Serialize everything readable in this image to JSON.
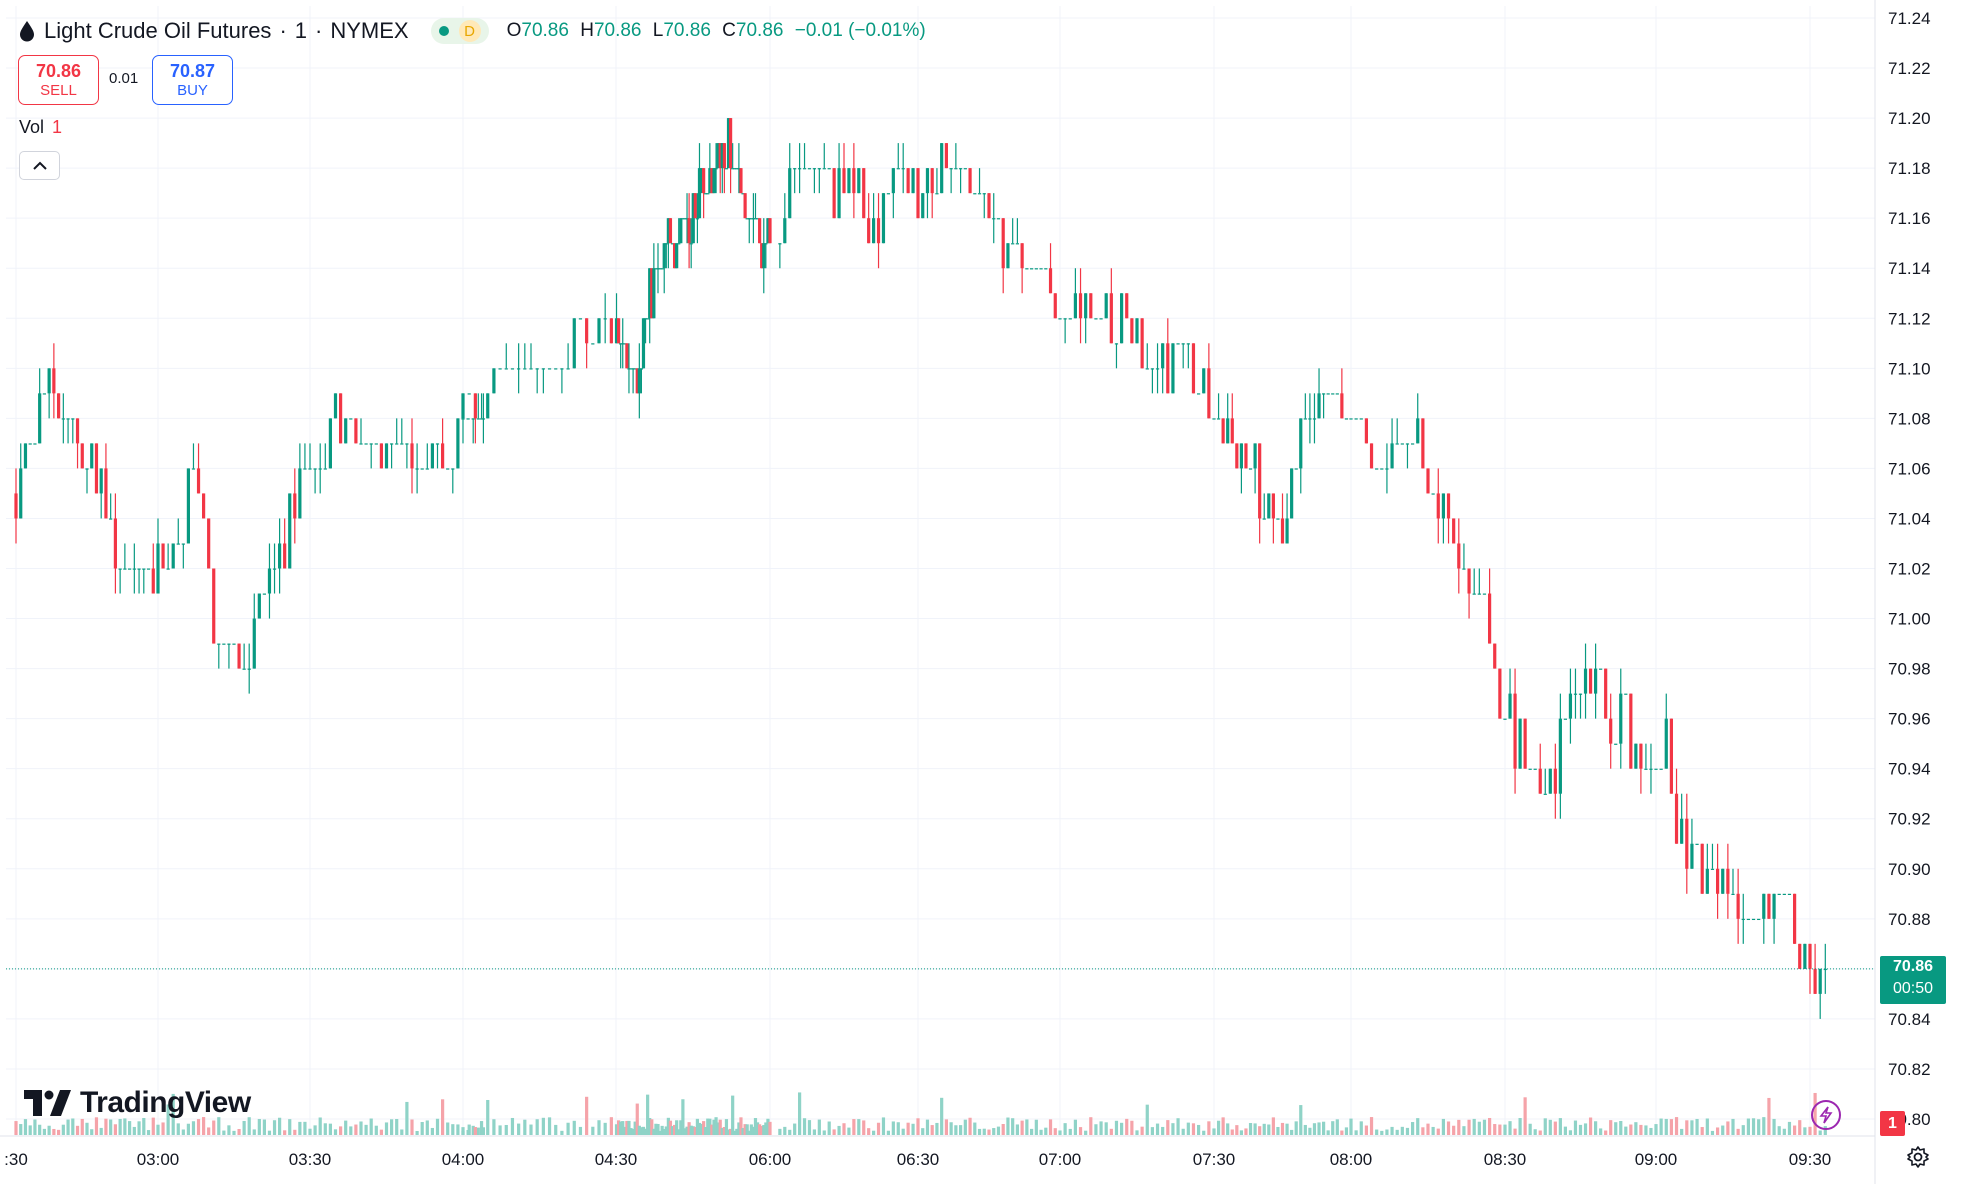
{
  "header": {
    "symbol": "Light Crude Oil Futures",
    "interval": "1",
    "exchange": "NYMEX",
    "title_sep": " · ",
    "interval_sep": " · ",
    "d_badge": "D",
    "ohlc": {
      "o_label": "O",
      "o": "70.86",
      "h_label": "H",
      "h": "70.86",
      "l_label": "L",
      "l": "70.86",
      "c_label": "C",
      "c": "70.86",
      "change": "−0.01 (−0.01%)"
    }
  },
  "trade": {
    "sell_price": "70.86",
    "sell_label": "SELL",
    "spread": "0.01",
    "buy_price": "70.87",
    "buy_label": "BUY"
  },
  "volume": {
    "label": "Vol",
    "value": "1"
  },
  "logo": {
    "text": "TradingView"
  },
  "price_badge": {
    "price": "70.86",
    "countdown": "00:50"
  },
  "alert_flag": "1",
  "icons": {
    "symbol": "drop-icon",
    "collapse": "chevron-up-icon",
    "bolt": "lightning-icon",
    "settings": "gear-icon"
  },
  "colors": {
    "up": "#089981",
    "down": "#f23645",
    "up_volume": "#8fd3c7",
    "down_volume": "#f5a3a9"
  },
  "chart_data": {
    "type": "candlestick",
    "y_ticks": [
      "71.24",
      "71.22",
      "71.20",
      "71.18",
      "71.16",
      "71.14",
      "71.12",
      "71.10",
      "71.08",
      "71.06",
      "71.04",
      "71.02",
      "71.00",
      "70.98",
      "70.96",
      "70.94",
      "70.92",
      "70.90",
      "70.88",
      "70.86",
      "70.84",
      "70.82",
      "70.80"
    ],
    "ylim": [
      70.79,
      71.245
    ],
    "x_ticks": [
      ":30",
      "03:00",
      "03:30",
      "04:00",
      "04:30",
      "06:00",
      "06:30",
      "07:00",
      "07:30",
      "08:00",
      "08:30",
      "09:00",
      "09:30"
    ],
    "last_price": 70.86,
    "grid": true,
    "anchors": [
      {
        "t": "02:30",
        "p": 71.05
      },
      {
        "t": "02:37",
        "p": 71.09
      },
      {
        "t": "02:45",
        "p": 71.06
      },
      {
        "t": "02:55",
        "p": 71.01
      },
      {
        "t": "03:07",
        "p": 71.05
      },
      {
        "t": "03:12",
        "p": 70.99
      },
      {
        "t": "03:17",
        "p": 70.98
      },
      {
        "t": "03:28",
        "p": 71.05
      },
      {
        "t": "03:35",
        "p": 71.08
      },
      {
        "t": "03:45",
        "p": 71.06
      },
      {
        "t": "03:53",
        "p": 71.05
      },
      {
        "t": "03:58",
        "p": 71.08
      },
      {
        "t": "04:10",
        "p": 71.06
      },
      {
        "t": "04:16",
        "p": 71.1
      },
      {
        "t": "04:22",
        "p": 71.08
      },
      {
        "t": "04:30",
        "p": 71.1
      },
      {
        "t": "04:45",
        "p": 71.11
      },
      {
        "t": "04:56",
        "p": 71.1
      },
      {
        "t": "05:05",
        "p": 71.13
      },
      {
        "t": "05:18",
        "p": 71.16
      },
      {
        "t": "05:40",
        "p": 71.19
      },
      {
        "t": "05:55",
        "p": 71.15
      },
      {
        "t": "06:10",
        "p": 71.18
      },
      {
        "t": "06:20",
        "p": 71.16
      },
      {
        "t": "06:30",
        "p": 71.17
      },
      {
        "t": "06:35",
        "p": 71.19
      },
      {
        "t": "06:45",
        "p": 71.16
      },
      {
        "t": "06:52",
        "p": 71.14
      },
      {
        "t": "07:00",
        "p": 71.13
      },
      {
        "t": "07:10",
        "p": 71.12
      },
      {
        "t": "07:25",
        "p": 71.1
      },
      {
        "t": "07:38",
        "p": 71.06
      },
      {
        "t": "07:45",
        "p": 71.03
      },
      {
        "t": "07:48",
        "p": 71.06
      },
      {
        "t": "07:52",
        "p": 71.08
      },
      {
        "t": "07:56",
        "p": 71.1
      },
      {
        "t": "08:04",
        "p": 71.06
      },
      {
        "t": "08:12",
        "p": 71.08
      },
      {
        "t": "08:17",
        "p": 71.05
      },
      {
        "t": "08:25",
        "p": 71.0
      },
      {
        "t": "08:30",
        "p": 70.96
      },
      {
        "t": "08:38",
        "p": 70.93
      },
      {
        "t": "08:45",
        "p": 70.98
      },
      {
        "t": "08:53",
        "p": 70.96
      },
      {
        "t": "08:57",
        "p": 70.93
      },
      {
        "t": "09:00",
        "p": 70.97
      },
      {
        "t": "09:05",
        "p": 70.91
      },
      {
        "t": "09:14",
        "p": 70.88
      },
      {
        "t": "09:24",
        "p": 70.89
      },
      {
        "t": "09:28",
        "p": 70.87
      },
      {
        "t": "09:33",
        "p": 70.85
      }
    ]
  }
}
